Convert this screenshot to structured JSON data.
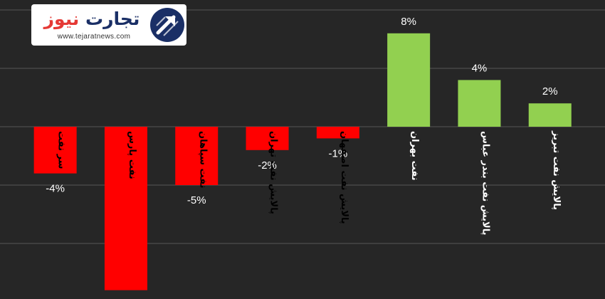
{
  "chart_data": {
    "type": "bar",
    "categories": [
      "سر نفت",
      "نفت پارس",
      "نفت سپاهان",
      "پالایش نفت تهران",
      "پالایش نفت اصفهان",
      "نفت بهران",
      "پالایش نفت بندر عباس",
      "پالایش نفت تبریز"
    ],
    "values": [
      -4,
      -14,
      -5,
      -2,
      -1,
      8,
      4,
      2
    ],
    "data_labels": [
      "-4%",
      "",
      "-5%",
      "-2%",
      "-1%",
      "8%",
      "4%",
      "2%"
    ],
    "ylim": [
      -15,
      10
    ],
    "gridlines": [
      -10,
      -5,
      0,
      5,
      10
    ],
    "grid": true,
    "colors": {
      "positive": "#92d050",
      "negative": "#ff0000",
      "background": "#262626",
      "gridline": "#555555",
      "label": "#ffffff"
    }
  },
  "logo": {
    "text_part_a": "تجارت",
    "text_part_b": "نیوز",
    "url": "www.tejaratnews.com",
    "icon": "tejaratnews-logo-icon"
  }
}
